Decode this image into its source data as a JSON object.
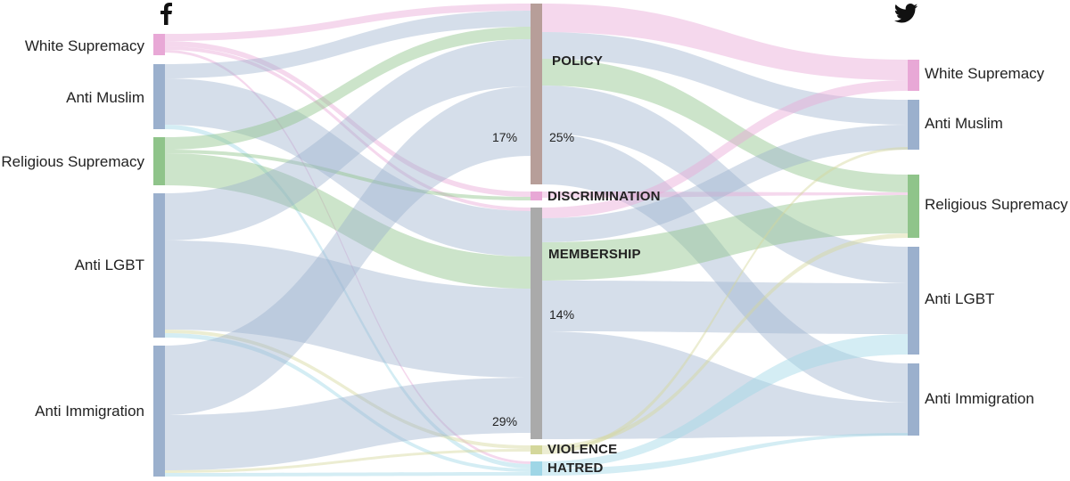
{
  "platforms": {
    "left_icon": "facebook-icon",
    "right_icon": "twitter-icon"
  },
  "left_categories": [
    {
      "id": "ws",
      "label": "White Supremacy",
      "color": "#e8a8d6"
    },
    {
      "id": "am",
      "label": "Anti Muslim",
      "color": "#9bb0cd"
    },
    {
      "id": "rs",
      "label": "Religious Supremacy",
      "color": "#8fc48a"
    },
    {
      "id": "al",
      "label": "Anti LGBT",
      "color": "#9bb0cd"
    },
    {
      "id": "ai",
      "label": "Anti Immigration",
      "color": "#9bb0cd"
    }
  ],
  "middle_categories": [
    {
      "id": "policy",
      "label": "POLICY",
      "color": "#b79e99"
    },
    {
      "id": "discrimination",
      "label": "DISCRIMINATION",
      "color": "#e8a8d6"
    },
    {
      "id": "membership",
      "label": "MEMBERSHIP",
      "color": "#aaaaaa"
    },
    {
      "id": "violence",
      "label": "VIOLENCE",
      "color": "#d4d79b"
    },
    {
      "id": "hatred",
      "label": "HATRED",
      "color": "#9fd6e6"
    }
  ],
  "right_categories": [
    {
      "id": "ws",
      "label": "White Supremacy",
      "color": "#e8a8d6"
    },
    {
      "id": "am",
      "label": "Anti Muslim",
      "color": "#9bb0cd"
    },
    {
      "id": "rs",
      "label": "Religious Supremacy",
      "color": "#8fc48a"
    },
    {
      "id": "al",
      "label": "Anti LGBT",
      "color": "#9bb0cd"
    },
    {
      "id": "ai",
      "label": "Anti Immigration",
      "color": "#9bb0cd"
    }
  ],
  "percent_labels": {
    "policy_left": "17%",
    "policy_right": "25%",
    "membership_left": "29%",
    "membership_right": "14%"
  },
  "colors": {
    "pink": "#e8a8d6",
    "blue": "#9bb0cd",
    "green": "#8fc48a",
    "policy": "#b79e99",
    "membership": "#aaaaaa",
    "violence": "#d4d79b",
    "hatred": "#9fd6e6"
  }
}
